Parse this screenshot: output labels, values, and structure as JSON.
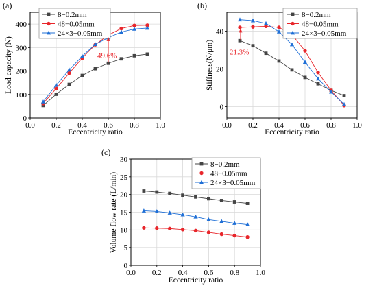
{
  "colors": {
    "s1": "#444444",
    "s2": "#e8262b",
    "s3": "#1f6fd6",
    "grid": "#d9d9d9",
    "annotation": "#e8262b"
  },
  "legend": [
    "8−0.2mm",
    "48−0.05mm",
    "24×3−0.05mm"
  ],
  "chart_data": [
    {
      "type": "line",
      "panel_label": "(a)",
      "xlabel": "Eccentricity ratio",
      "ylabel": "Load capacity (N)",
      "xlim": [
        0.0,
        1.0
      ],
      "ylim": [
        0,
        450
      ],
      "xticks": [
        "0.0",
        "0.2",
        "0.4",
        "0.6",
        "0.8",
        "1.0"
      ],
      "yticks": [
        "0",
        "100",
        "200",
        "300",
        "400"
      ],
      "grid": true,
      "legend_position": "top-left",
      "x": [
        0.1,
        0.2,
        0.3,
        0.4,
        0.5,
        0.6,
        0.7,
        0.8,
        0.9
      ],
      "series": [
        {
          "name": "8−0.2mm",
          "marker": "square",
          "values": [
            53,
            101,
            143,
            181,
            210,
            233,
            252,
            265,
            272
          ]
        },
        {
          "name": "48−0.05mm",
          "marker": "circle",
          "values": [
            62,
            125,
            191,
            255,
            312,
            353,
            381,
            394,
            395
          ]
        },
        {
          "name": "24×3−0.05mm",
          "marker": "triangle",
          "values": [
            69,
            140,
            205,
            263,
            314,
            342,
            366,
            379,
            383
          ]
        }
      ],
      "annotation": {
        "text": "49.6%",
        "x": 0.6
      }
    },
    {
      "type": "line",
      "panel_label": "(b)",
      "xlabel": "Eccentricity ratio",
      "ylabel": "Stiffness(N/μm)",
      "xlim": [
        0.0,
        1.0
      ],
      "ylim": [
        -6,
        50
      ],
      "xticks": [
        "0.0",
        "0.2",
        "0.4",
        "0.6",
        "0.8",
        "1.0"
      ],
      "yticks": [
        "0",
        "20",
        "40"
      ],
      "grid": true,
      "legend_position": "top-right",
      "x": [
        0.1,
        0.2,
        0.3,
        0.4,
        0.5,
        0.6,
        0.7,
        0.8,
        0.9
      ],
      "series": [
        {
          "name": "8−0.2mm",
          "marker": "square",
          "values": [
            35,
            32.3,
            28.3,
            24.2,
            19.5,
            15.5,
            12.1,
            8.6,
            5.8
          ]
        },
        {
          "name": "48−0.05mm",
          "marker": "circle",
          "values": [
            42,
            42.3,
            42.6,
            42,
            38.2,
            29.6,
            18.1,
            8.6,
            0.6
          ]
        },
        {
          "name": "24×3−0.05mm",
          "marker": "triangle",
          "values": [
            46.1,
            45.6,
            44.1,
            39.7,
            32.9,
            23.6,
            14.8,
            7.8,
            1.2
          ]
        }
      ],
      "annotation": {
        "text": "21.3%",
        "x": 0.1
      }
    },
    {
      "type": "line",
      "panel_label": "(c)",
      "xlabel": "Eccentricity ratio",
      "ylabel": "Volume flow rate (L/min)",
      "xlim": [
        0.0,
        1.0
      ],
      "ylim": [
        0,
        30
      ],
      "xticks": [
        "0.0",
        "0.2",
        "0.4",
        "0.6",
        "0.8",
        "1.0"
      ],
      "yticks": [
        "0",
        "5",
        "10",
        "15",
        "20",
        "25",
        "30"
      ],
      "grid": true,
      "legend_position": "top-right",
      "x": [
        0.1,
        0.2,
        0.3,
        0.4,
        0.5,
        0.6,
        0.7,
        0.8,
        0.9
      ],
      "series": [
        {
          "name": "8−0.2mm",
          "marker": "square",
          "values": [
            21.0,
            20.7,
            20.3,
            19.8,
            19.3,
            18.8,
            18.3,
            17.9,
            17.5
          ]
        },
        {
          "name": "48−0.05mm",
          "marker": "circle",
          "values": [
            10.6,
            10.5,
            10.4,
            10.1,
            9.8,
            9.3,
            8.8,
            8.4,
            8.0
          ]
        },
        {
          "name": "24×3−0.05mm",
          "marker": "triangle",
          "values": [
            15.4,
            15.2,
            14.8,
            14.3,
            13.7,
            12.9,
            12.4,
            11.9,
            11.5
          ]
        }
      ]
    }
  ]
}
